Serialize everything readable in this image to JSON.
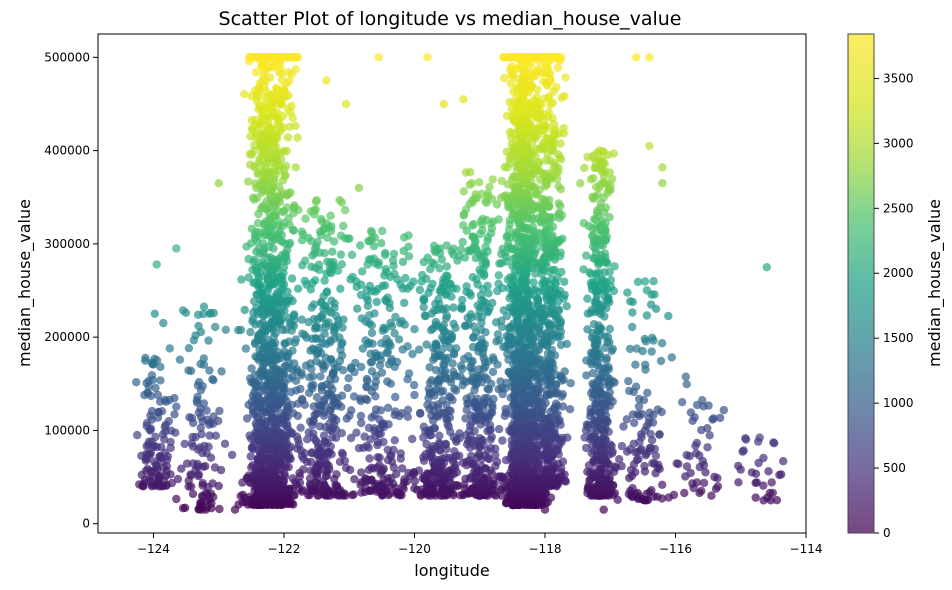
{
  "chart_data": {
    "type": "scatter",
    "title": "Scatter Plot of longitude vs median_house_value",
    "xlabel": "longitude",
    "ylabel": "median_house_value",
    "xlim": [
      -124.85,
      -114.0
    ],
    "ylim": [
      -10000,
      525000
    ],
    "xticks": [
      -124,
      -122,
      -120,
      -118,
      -116,
      -114
    ],
    "xtick_labels": [
      "−124",
      "−122",
      "−120",
      "−118",
      "−116",
      "−114"
    ],
    "yticks": [
      0,
      100000,
      200000,
      300000,
      400000,
      500000
    ],
    "ytick_labels": [
      "0",
      "100000",
      "200000",
      "300000",
      "400000",
      "500000"
    ],
    "grid": false,
    "marker_alpha": 0.7,
    "colormap": "viridis",
    "colorbar": {
      "label": "median_house_value",
      "range": [
        0,
        3842
      ],
      "ticks": [
        0,
        500,
        1000,
        1500,
        2000,
        2500,
        3000,
        3500
      ],
      "tick_labels": [
        "0",
        "500",
        "1000",
        "1500",
        "2000",
        "2500",
        "3000",
        "3500"
      ]
    },
    "density_bands": [
      {
        "x_center": -122.2,
        "x_spread": 0.35,
        "y_min": 20000,
        "y_max": 500000,
        "count": 1300
      },
      {
        "x_center": -121.4,
        "x_spread": 0.4,
        "y_min": 30000,
        "y_max": 350000,
        "count": 350
      },
      {
        "x_center": -120.5,
        "x_spread": 0.6,
        "y_min": 30000,
        "y_max": 320000,
        "count": 280
      },
      {
        "x_center": -119.6,
        "x_spread": 0.3,
        "y_min": 30000,
        "y_max": 300000,
        "count": 300
      },
      {
        "x_center": -119.0,
        "x_spread": 0.3,
        "y_min": 30000,
        "y_max": 380000,
        "count": 350
      },
      {
        "x_center": -118.3,
        "x_spread": 0.3,
        "y_min": 20000,
        "y_max": 500000,
        "count": 1500
      },
      {
        "x_center": -117.9,
        "x_spread": 0.2,
        "y_min": 40000,
        "y_max": 500000,
        "count": 450
      },
      {
        "x_center": -117.15,
        "x_spread": 0.2,
        "y_min": 30000,
        "y_max": 400000,
        "count": 500
      },
      {
        "x_center": -116.5,
        "x_spread": 0.4,
        "y_min": 25000,
        "y_max": 260000,
        "count": 120
      },
      {
        "x_center": -115.6,
        "x_spread": 0.4,
        "y_min": 30000,
        "y_max": 160000,
        "count": 45
      },
      {
        "x_center": -124.0,
        "x_spread": 0.25,
        "y_min": 40000,
        "y_max": 180000,
        "count": 110
      },
      {
        "x_center": -123.3,
        "x_spread": 0.4,
        "y_min": 15000,
        "y_max": 240000,
        "count": 120
      },
      {
        "x_center": -114.7,
        "x_spread": 0.3,
        "y_min": 25000,
        "y_max": 100000,
        "count": 25
      }
    ],
    "points": [
      {
        "x": -124.25,
        "y": 95000
      },
      {
        "x": -123.95,
        "y": 278000
      },
      {
        "x": -123.98,
        "y": 225000
      },
      {
        "x": -123.85,
        "y": 215000
      },
      {
        "x": -123.65,
        "y": 295000
      },
      {
        "x": -123.2,
        "y": 15000
      },
      {
        "x": -123.0,
        "y": 365000
      },
      {
        "x": -122.75,
        "y": 15000
      },
      {
        "x": -121.35,
        "y": 475000
      },
      {
        "x": -121.05,
        "y": 450000
      },
      {
        "x": -120.85,
        "y": 360000
      },
      {
        "x": -120.55,
        "y": 500000
      },
      {
        "x": -119.9,
        "y": 30000
      },
      {
        "x": -119.55,
        "y": 450000
      },
      {
        "x": -119.25,
        "y": 455000
      },
      {
        "x": -118.5,
        "y": 20000
      },
      {
        "x": -118.0,
        "y": 15000
      },
      {
        "x": -117.1,
        "y": 15000
      },
      {
        "x": -116.4,
        "y": 405000
      },
      {
        "x": -116.2,
        "y": 382000
      },
      {
        "x": -116.2,
        "y": 365000
      },
      {
        "x": -114.6,
        "y": 275000
      },
      {
        "x": -114.65,
        "y": 25000
      },
      {
        "x": -114.35,
        "y": 67000
      },
      {
        "x": -114.5,
        "y": 87000
      },
      {
        "x": -115.0,
        "y": 58000
      },
      {
        "x": -115.35,
        "y": 40000
      },
      {
        "x": -116.6,
        "y": 500000
      },
      {
        "x": -116.4,
        "y": 500000
      },
      {
        "x": -119.8,
        "y": 500000
      }
    ],
    "capped_value": 500001
  }
}
